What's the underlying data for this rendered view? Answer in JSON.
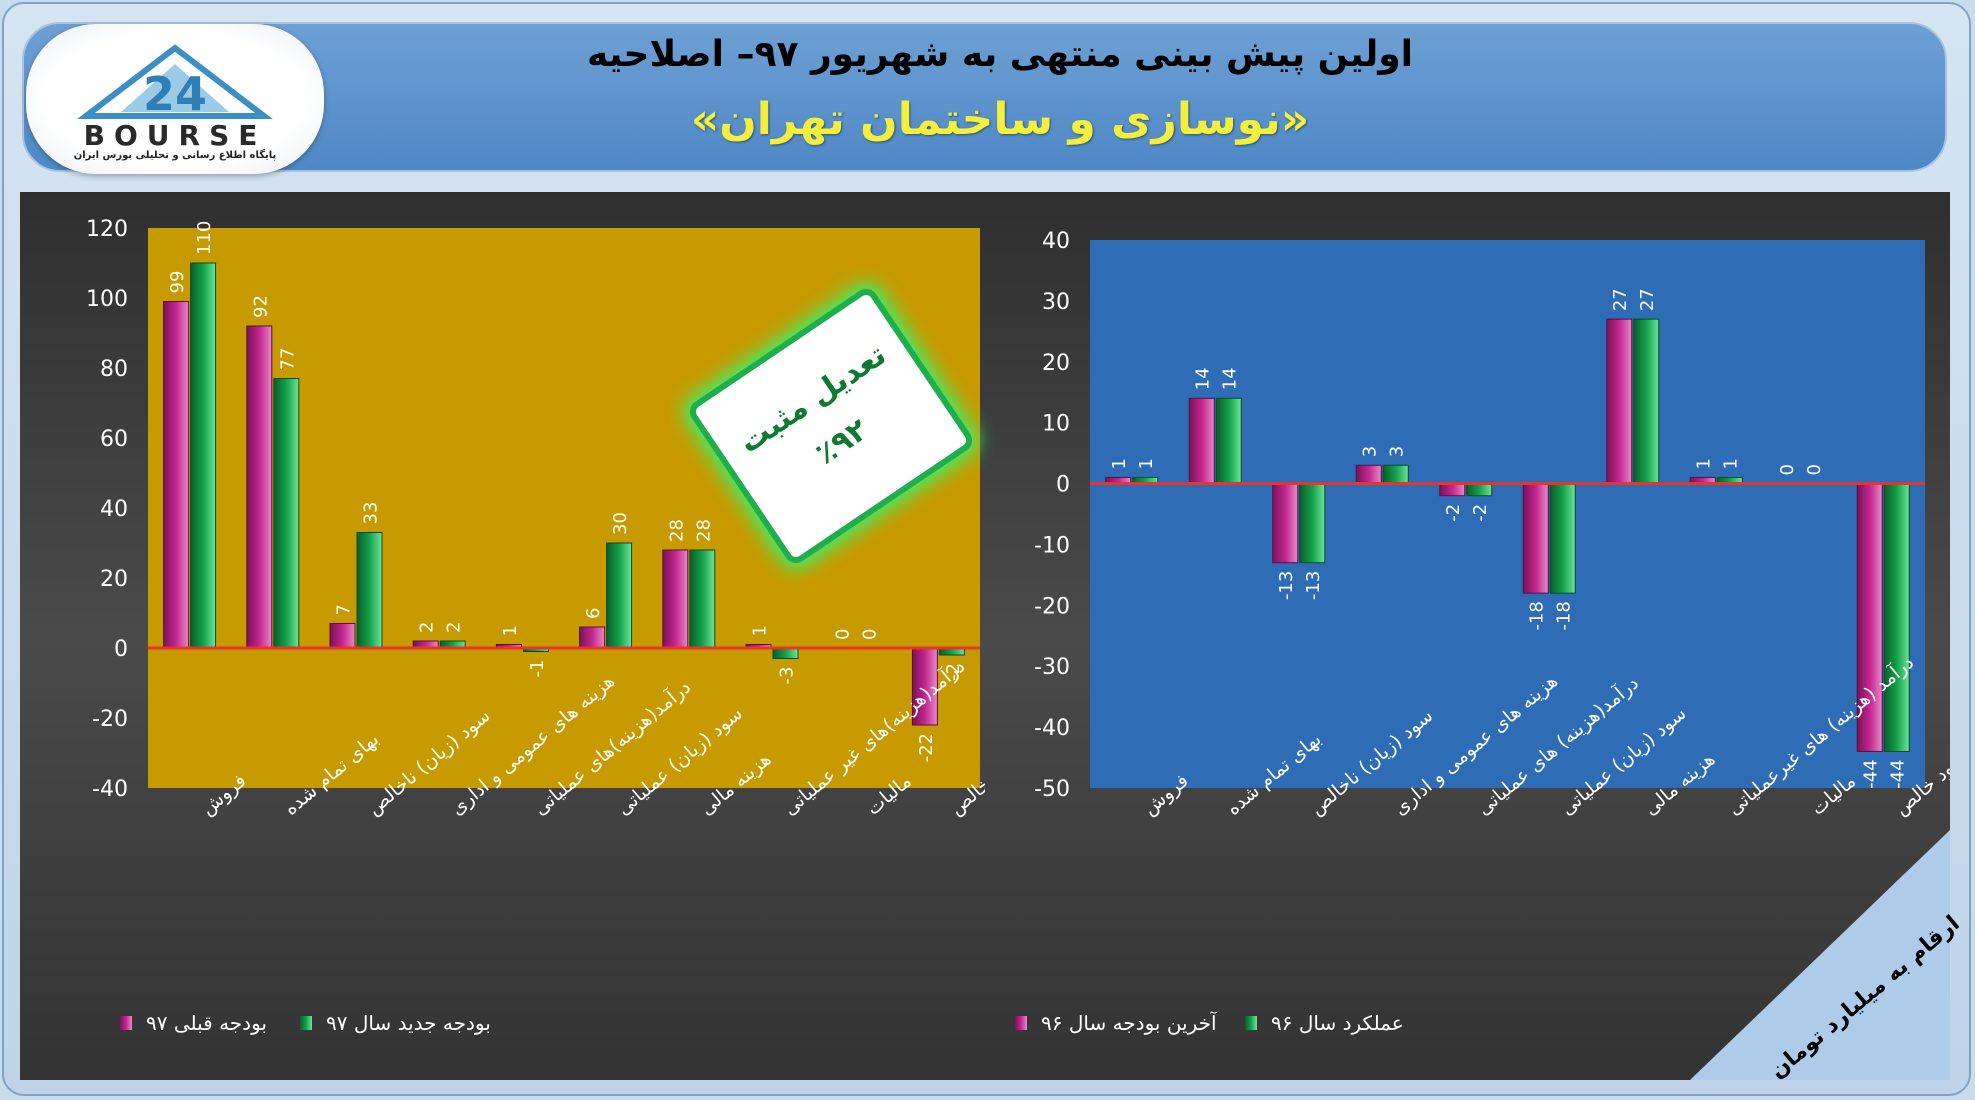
{
  "header": {
    "title_line1": "اولین پیش بینی منتهی به شهریور ۹۷– اصلاحیه",
    "title_line2": "«نوسازی و ساختمان تهران»"
  },
  "logo": {
    "word": "BOURSE",
    "number": "24",
    "subtitle": "پایگاه اطلاع رسانی و تحلیلی بورس ایران"
  },
  "stamp": {
    "line1": "تعدیل مثبت",
    "line2": "٪۹۲"
  },
  "unit_note": "ارقام به میلیارد تومان",
  "colors": {
    "magenta": "#c2268f",
    "green": "#13a14a",
    "left_plot_bg": "#c79a00",
    "right_plot_bg": "#2e6db5",
    "zero_line": "#e8352b"
  },
  "chart_data": [
    {
      "type": "bar",
      "categories": [
        "فروش",
        "بهای تمام شده",
        "سود (زیان) ناخالص",
        "هزینه های عمومی و اداری",
        "درآمد(هزینه)های عملیاتی",
        "سود (زیان) عملیاتی",
        "هزینه مالی",
        "درآمد(هزینه)های غیر عملیاتی",
        "مالیات",
        "سود خالص"
      ],
      "series": [
        {
          "name": "بودجه قبلی ۹۷",
          "values": [
            99,
            92,
            7,
            2,
            1,
            6,
            28,
            1,
            0,
            -22
          ]
        },
        {
          "name": "بودجه جدید سال ۹۷",
          "values": [
            110,
            77,
            33,
            2,
            -1,
            30,
            28,
            -3,
            0,
            -2
          ]
        }
      ],
      "ylim": [
        -40,
        120
      ],
      "yticks": [
        120,
        100,
        80,
        60,
        40,
        20,
        0,
        -20,
        -40
      ],
      "legend_position": "bottom"
    },
    {
      "type": "bar",
      "categories": [
        "فروش",
        "بهای تمام شده",
        "سود (زیان) ناخالص",
        "هزینه های عمومی و اداری",
        "درآمد(هزینه) های عملیاتی",
        "سود (زیان) عملیاتی",
        "هزینه مالی",
        "درآمد (هزینه) های غیرعملیاتی",
        "مالیات",
        "سود خالص"
      ],
      "series": [
        {
          "name": "آخرین بودجه سال ۹۶",
          "values": [
            1,
            14,
            -13,
            3,
            -2,
            -18,
            27,
            1,
            0,
            -44
          ]
        },
        {
          "name": "عملکرد سال ۹۶",
          "values": [
            1,
            14,
            -13,
            3,
            -2,
            -18,
            27,
            1,
            0,
            -44
          ]
        }
      ],
      "ylim": [
        -50,
        40
      ],
      "yticks": [
        40,
        30,
        20,
        10,
        0,
        -10,
        -20,
        -30,
        -40,
        -50
      ],
      "legend_position": "bottom"
    }
  ]
}
